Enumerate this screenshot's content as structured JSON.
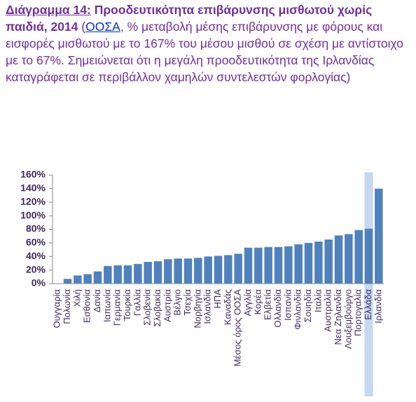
{
  "chart_data": {
    "type": "bar",
    "title_label": "Διάγραμμα 14:",
    "title": "Προοδευτικότητα επιβάρυνσης μισθωτού χωρίς παιδιά, 2014",
    "source_prefix": "(",
    "source_link": "ΟΟΣΑ",
    "subtitle": ", % μεταβολή μέσης επιβάρυνσης με φόρους και εισφορές μισθωτού με το 167% του μέσου μισθού σε σχέση με αντίστοιχο με το 67%. Σημειώνεται ότι η μεγάλη προοδευτικότητα της Ιρλανδίας καταγράφεται σε περιβάλλον χαμηλών συντελεστών φορλογίας)",
    "categories": [
      "Ουγγαρία",
      "Πολωνία",
      "Χιλή",
      "Εσθονία",
      "Δανία",
      "Ιαπωνία",
      "Γερμανία",
      "Τουρκία",
      "Γαλλία",
      "Σλοβενία",
      "Σλοβακία",
      "Αυστρία",
      "Βέλγιο",
      "Τσεχία",
      "Νορβηγία",
      "Ισλανδία",
      "ΗΠΑ",
      "Καναδάς",
      "Μέσος όρος ΟΟΣΑ",
      "Αγγλία",
      "Κορέα",
      "Ελβετία",
      "Ολλανδία",
      "Ισπανία",
      "Φινλανδία",
      "Σουηδία",
      "Ιταλία",
      "Αυστραλία",
      "Νεα Ζηλανδία",
      "Λουξεμβούργο",
      "Πορτογαλία",
      "Ελλάδα",
      "Ιρλανδία"
    ],
    "values": [
      0,
      7,
      12,
      14,
      18,
      26,
      27,
      27,
      29,
      32,
      33,
      36,
      37,
      37,
      38,
      40,
      41,
      42,
      44,
      53,
      53,
      54,
      54,
      55,
      58,
      60,
      62,
      65,
      71,
      73,
      79,
      81,
      140
    ],
    "color": "#4f81bd",
    "highlight_index": 31,
    "highlight_color": "#c6d9f1",
    "ylim": [
      0,
      160
    ],
    "yticks": [
      {
        "value": 0,
        "label": "0%"
      },
      {
        "value": 20,
        "label": "20%"
      },
      {
        "value": 40,
        "label": "40%"
      },
      {
        "value": 60,
        "label": "60%"
      },
      {
        "value": 80,
        "label": "80%"
      },
      {
        "value": 100,
        "label": "100%"
      },
      {
        "value": 120,
        "label": "120%"
      },
      {
        "value": 140,
        "label": "140%"
      },
      {
        "value": 160,
        "label": "160%"
      }
    ],
    "grid": false
  }
}
